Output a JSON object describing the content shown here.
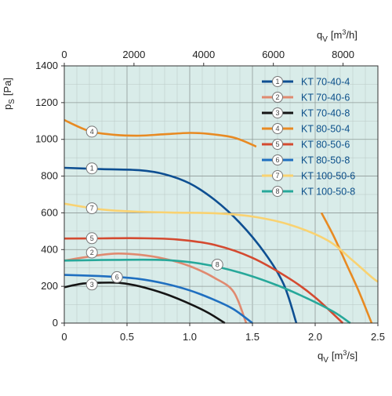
{
  "chart_data": {
    "type": "line",
    "background": "#d9ece9",
    "grid": true,
    "legend_position": "top-right",
    "x_axis": {
      "label_main": "q",
      "label_sub": "V",
      "label_unit": "[m",
      "label_sup": "3",
      "label_end": "/s]",
      "range": [
        0,
        2.5
      ],
      "ticks": [
        0,
        0.5,
        1.0,
        1.5,
        2.0,
        2.5
      ],
      "tick_labels": [
        "0",
        "0.5",
        "1.0",
        "1.5",
        "2.0",
        "2.5"
      ]
    },
    "x_axis_top": {
      "label_main": "q",
      "label_sub": "V",
      "label_unit": "[m",
      "label_sup": "3",
      "label_end": "/h]",
      "range": [
        0,
        9000
      ],
      "ticks": [
        0,
        2000,
        4000,
        6000,
        8000
      ],
      "tick_labels": [
        "0",
        "2000",
        "4000",
        "6000",
        "8000"
      ]
    },
    "y_axis": {
      "label_main": "p",
      "label_sub": "S",
      "label_unit": "[Pa]",
      "range": [
        0,
        1400
      ],
      "ticks": [
        0,
        200,
        400,
        600,
        800,
        1000,
        1200,
        1400
      ],
      "tick_labels": [
        "0",
        "200",
        "400",
        "600",
        "800",
        "1000",
        "1200",
        "1400"
      ]
    },
    "series": [
      {
        "id": "1",
        "name": "KT 70-40-4",
        "color": "#0e4f92",
        "points": [
          [
            0,
            845
          ],
          [
            0.3,
            838
          ],
          [
            0.6,
            832
          ],
          [
            0.8,
            810
          ],
          [
            1.0,
            760
          ],
          [
            1.2,
            670
          ],
          [
            1.4,
            545
          ],
          [
            1.6,
            380
          ],
          [
            1.75,
            210
          ],
          [
            1.85,
            0
          ]
        ],
        "marker_at": [
          0.22,
          842
        ]
      },
      {
        "id": "2",
        "name": "KT 70-40-6",
        "color": "#e08a70",
        "points": [
          [
            0,
            340
          ],
          [
            0.2,
            362
          ],
          [
            0.4,
            378
          ],
          [
            0.6,
            372
          ],
          [
            0.8,
            350
          ],
          [
            1.0,
            310
          ],
          [
            1.2,
            245
          ],
          [
            1.35,
            170
          ],
          [
            1.45,
            0
          ]
        ],
        "marker_at": [
          0.22,
          384
        ]
      },
      {
        "id": "3",
        "name": "KT 70-40-8",
        "color": "#151515",
        "points": [
          [
            0,
            195
          ],
          [
            0.15,
            215
          ],
          [
            0.3,
            220
          ],
          [
            0.45,
            218
          ],
          [
            0.6,
            200
          ],
          [
            0.8,
            160
          ],
          [
            1.0,
            105
          ],
          [
            1.15,
            55
          ],
          [
            1.28,
            0
          ]
        ],
        "marker_at": [
          0.22,
          210
        ]
      },
      {
        "id": "4",
        "name": "KT 80-50-4",
        "color": "#e88a22",
        "points": [
          [
            0,
            1105
          ],
          [
            0.2,
            1045
          ],
          [
            0.4,
            1025
          ],
          [
            0.6,
            1020
          ],
          [
            0.8,
            1028
          ],
          [
            1.0,
            1035
          ],
          [
            1.15,
            1030
          ],
          [
            1.35,
            1010
          ],
          [
            1.5,
            970
          ],
          [
            1.53,
            960
          ]
        ],
        "marker_at": [
          0.22,
          1042
        ]
      },
      {
        "id": "4b",
        "name": "",
        "color": "#e88a22",
        "points": [
          [
            2.05,
            600
          ],
          [
            2.15,
            470
          ],
          [
            2.25,
            320
          ],
          [
            2.35,
            170
          ],
          [
            2.45,
            0
          ]
        ],
        "marker_at": null
      },
      {
        "id": "5",
        "name": "KT 80-50-6",
        "color": "#d44a30",
        "points": [
          [
            0,
            460
          ],
          [
            0.3,
            461
          ],
          [
            0.6,
            462
          ],
          [
            0.9,
            455
          ],
          [
            1.2,
            425
          ],
          [
            1.5,
            355
          ],
          [
            1.8,
            240
          ],
          [
            2.0,
            140
          ],
          [
            2.22,
            0
          ]
        ],
        "marker_at": [
          0.22,
          462
        ]
      },
      {
        "id": "6",
        "name": "KT 80-50-8",
        "color": "#1f6fc0",
        "points": [
          [
            0,
            262
          ],
          [
            0.2,
            258
          ],
          [
            0.4,
            252
          ],
          [
            0.6,
            240
          ],
          [
            0.8,
            215
          ],
          [
            1.0,
            178
          ],
          [
            1.2,
            125
          ],
          [
            1.35,
            75
          ],
          [
            1.5,
            0
          ]
        ],
        "marker_at": [
          0.42,
          250
        ]
      },
      {
        "id": "7",
        "name": "KT 100-50-6",
        "color": "#f9d271",
        "points": [
          [
            0,
            650
          ],
          [
            0.3,
            618
          ],
          [
            0.6,
            606
          ],
          [
            0.9,
            601
          ],
          [
            1.2,
            598
          ],
          [
            1.5,
            580
          ],
          [
            1.8,
            535
          ],
          [
            2.1,
            450
          ],
          [
            2.3,
            340
          ],
          [
            2.45,
            250
          ],
          [
            2.5,
            225
          ]
        ],
        "marker_at": [
          0.22,
          625
        ]
      },
      {
        "id": "8",
        "name": "KT 100-50-8",
        "color": "#27a89a",
        "points": [
          [
            0,
            340
          ],
          [
            0.4,
            344
          ],
          [
            0.8,
            343
          ],
          [
            1.1,
            322
          ],
          [
            1.4,
            275
          ],
          [
            1.7,
            205
          ],
          [
            1.95,
            130
          ],
          [
            2.15,
            60
          ],
          [
            2.28,
            0
          ]
        ],
        "marker_at": [
          1.22,
          318
        ]
      }
    ],
    "legend": [
      {
        "id": "1",
        "label": "KT 70-40-4",
        "color": "#0e4f92"
      },
      {
        "id": "2",
        "label": "KT 70-40-6",
        "color": "#e08a70"
      },
      {
        "id": "3",
        "label": "KT 70-40-8",
        "color": "#151515"
      },
      {
        "id": "4",
        "label": "KT 80-50-4",
        "color": "#e88a22"
      },
      {
        "id": "5",
        "label": "KT 80-50-6",
        "color": "#d44a30"
      },
      {
        "id": "6",
        "label": "KT 80-50-8",
        "color": "#1f6fc0"
      },
      {
        "id": "7",
        "label": "KT 100-50-6",
        "color": "#f9d271"
      },
      {
        "id": "8",
        "label": "KT 100-50-8",
        "color": "#27a89a"
      }
    ]
  }
}
